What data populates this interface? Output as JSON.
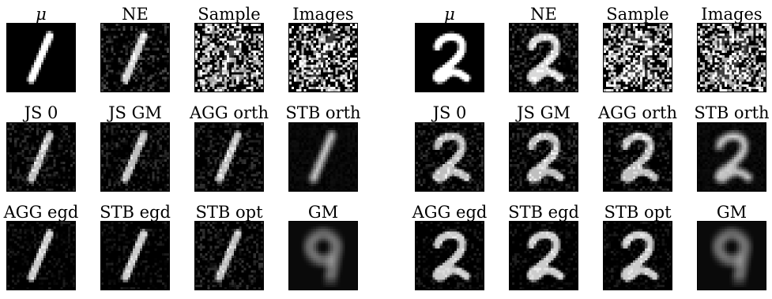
{
  "panels": [
    {
      "digit": "1",
      "rows": [
        [
          "μ",
          "NE",
          "Sample",
          "Images"
        ],
        [
          "JS 0",
          "JS GM",
          "AGG orth",
          "STB orth"
        ],
        [
          "AGG egd",
          "STB egd",
          "STB opt",
          "GM"
        ]
      ],
      "styles": [
        [
          "clean",
          "noisy",
          "rand",
          "rand"
        ],
        [
          "denoise-strong",
          "denoise-strong",
          "denoise-strong",
          "blur"
        ],
        [
          "denoise-mid",
          "denoise-mid",
          "denoise-strong",
          "gm"
        ]
      ]
    },
    {
      "digit": "2",
      "rows": [
        [
          "μ",
          "NE",
          "Sample",
          "Images"
        ],
        [
          "JS 0",
          "JS GM",
          "AGG orth",
          "STB orth"
        ],
        [
          "AGG egd",
          "STB egd",
          "STB opt",
          "GM"
        ]
      ],
      "styles": [
        [
          "clean",
          "noisy",
          "rand",
          "rand"
        ],
        [
          "denoise-strong",
          "denoise-strong",
          "denoise-strong",
          "blur"
        ],
        [
          "denoise-mid",
          "denoise-mid",
          "denoise-mid",
          "gm"
        ]
      ]
    }
  ]
}
